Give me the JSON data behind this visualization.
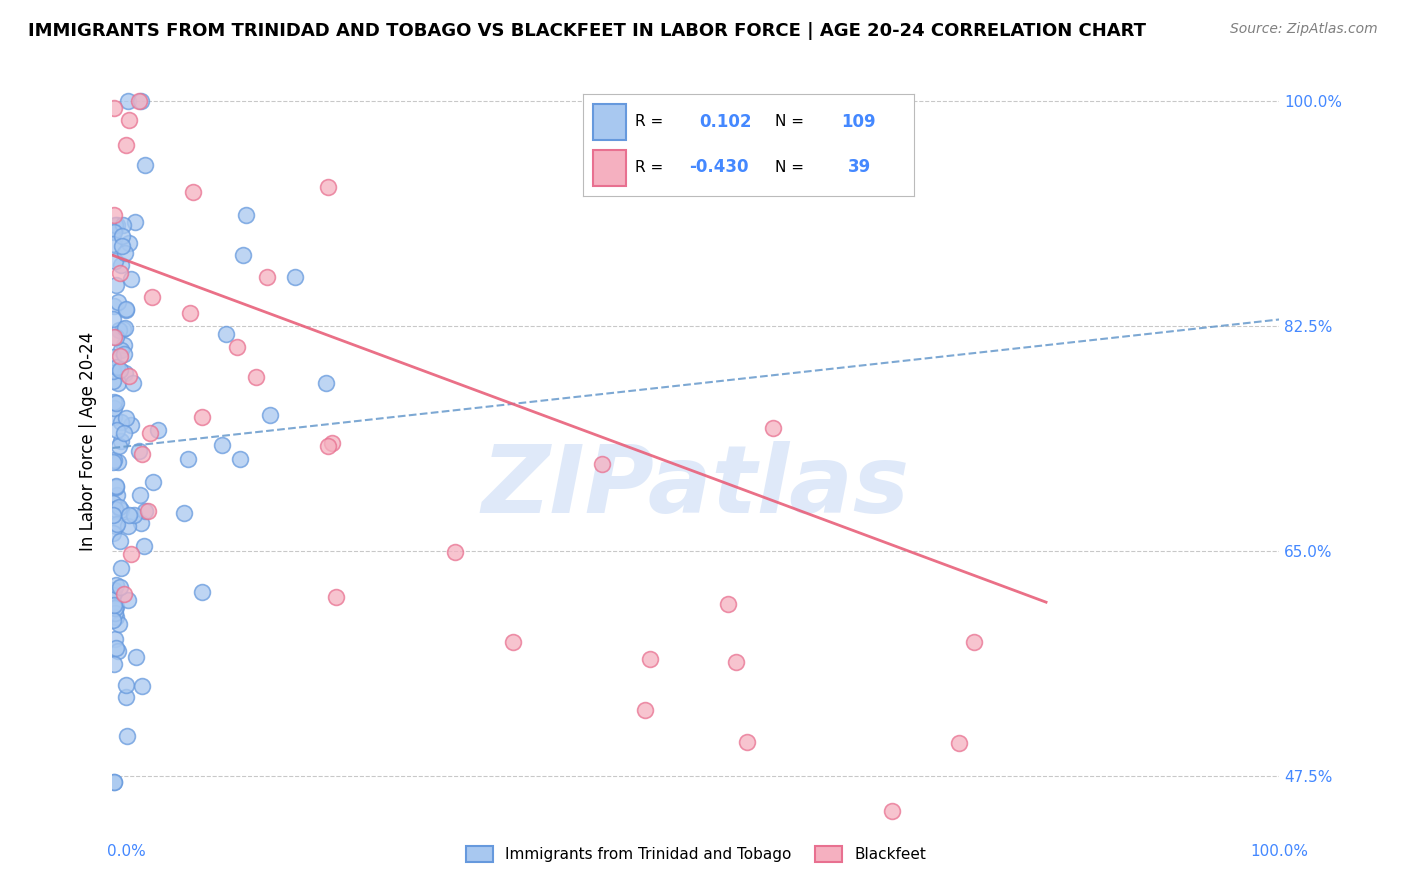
{
  "title": "IMMIGRANTS FROM TRINIDAD AND TOBAGO VS BLACKFEET IN LABOR FORCE | AGE 20-24 CORRELATION CHART",
  "source": "Source: ZipAtlas.com",
  "ylabel": "In Labor Force | Age 20-24",
  "xlim": [
    0.0,
    100.0
  ],
  "ylim": [
    44.0,
    103.0
  ],
  "yticks": [
    47.5,
    65.0,
    82.5,
    100.0
  ],
  "blue_R": 0.102,
  "blue_N": 109,
  "pink_R": -0.43,
  "pink_N": 39,
  "blue_color": "#a8c8f0",
  "pink_color": "#f5b0c0",
  "blue_edge_color": "#6699dd",
  "pink_edge_color": "#e87090",
  "blue_line_color": "#6699cc",
  "pink_line_color": "#e8607a",
  "legend_label_blue": "Immigrants from Trinidad and Tobago",
  "legend_label_pink": "Blackfeet",
  "watermark": "ZIPatlas",
  "watermark_color": "#c5d8f5",
  "tick_color": "#4488ff",
  "title_fontsize": 13,
  "source_fontsize": 10,
  "ylabel_fontsize": 12,
  "ytick_fontsize": 11,
  "blue_seed": 42,
  "pink_seed": 7
}
